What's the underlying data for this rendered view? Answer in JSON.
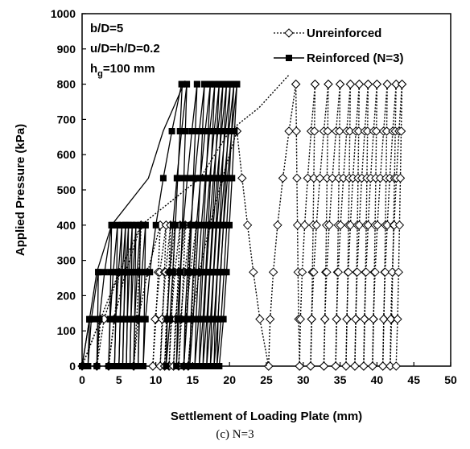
{
  "caption": "(c) N=3",
  "chart_data": {
    "type": "line",
    "xlabel": "Settlement of Loading Plate (mm)",
    "ylabel": "Applied Pressure (kPa)",
    "xlim": [
      0,
      50
    ],
    "ylim": [
      0,
      1000
    ],
    "xticks": [
      0,
      5,
      10,
      15,
      20,
      25,
      30,
      35,
      40,
      45,
      50
    ],
    "yticks": [
      0,
      100,
      200,
      300,
      400,
      500,
      600,
      700,
      800,
      900,
      1000
    ],
    "grid": false,
    "legend_position": "top-right",
    "annotations": [
      "b/D=5",
      "u/D=h/D=0.2",
      "h",
      "g",
      "=100 mm"
    ],
    "series": [
      {
        "name": "Unreinforced",
        "color": "#000000",
        "line_style": "dotted",
        "marker": "open-diamond",
        "envelope": [
          [
            0,
            0
          ],
          [
            2.5,
            133
          ],
          [
            5,
            267
          ],
          [
            8,
            400
          ],
          [
            16,
            533
          ],
          [
            20,
            667
          ],
          [
            24,
            733
          ],
          [
            28,
            825
          ]
        ],
        "loops": [
          {
            "start": 0,
            "x0": 0,
            "peak": 133,
            "xp": 2.5,
            "reload": 2.0
          },
          {
            "start": 2.0,
            "x0": 2.0,
            "peak": 267,
            "xp": 5.0,
            "reload": 3.6
          },
          {
            "start": 3.6,
            "x0": 3.6,
            "peak": 400,
            "xp": 8.0,
            "reload": 7.0
          },
          {
            "start": 7.0,
            "x0": 7.0,
            "peak": 400,
            "xp": 10.6,
            "reload": 9.6
          },
          {
            "start": 9.6,
            "x0": 9.6,
            "peak": 400,
            "xp": 11.4,
            "reload": 10.6
          },
          {
            "start": 10.6,
            "x0": 10.6,
            "peak": 400,
            "xp": 12.0,
            "reload": 11.2
          },
          {
            "start": 11.2,
            "x0": 11.2,
            "peak": 400,
            "xp": 12.6,
            "reload": 11.8
          },
          {
            "start": 11.8,
            "x0": 11.8,
            "peak": 400,
            "xp": 13.3,
            "reload": 12.4
          },
          {
            "start": 12.4,
            "x0": 12.4,
            "peak": 400,
            "xp": 14.0,
            "reload": 13.1
          },
          {
            "start": 13.1,
            "x0": 13.1,
            "peak": 400,
            "xp": 14.7,
            "reload": 13.8
          },
          {
            "start": 13.8,
            "x0": 13.8,
            "peak": 400,
            "xp": 15.5,
            "reload": 14.4
          },
          {
            "start": 14.4,
            "x0": 14.4,
            "peak": 667,
            "xp": 21.0,
            "reload": 25.3
          },
          {
            "start": 25.3,
            "x0": 25.3,
            "peak": 800,
            "xp": 29.0,
            "reload": 29.5
          },
          {
            "start": 29.5,
            "x0": 29.5,
            "peak": 800,
            "xp": 31.6,
            "reload": 31.0
          },
          {
            "start": 31.0,
            "x0": 31.0,
            "peak": 800,
            "xp": 33.4,
            "reload": 32.8
          },
          {
            "start": 32.8,
            "x0": 32.8,
            "peak": 800,
            "xp": 35.0,
            "reload": 34.4
          },
          {
            "start": 34.4,
            "x0": 34.4,
            "peak": 800,
            "xp": 36.4,
            "reload": 35.8
          },
          {
            "start": 35.8,
            "x0": 35.8,
            "peak": 800,
            "xp": 37.6,
            "reload": 37.0
          },
          {
            "start": 37.0,
            "x0": 37.0,
            "peak": 800,
            "xp": 38.8,
            "reload": 38.2
          },
          {
            "start": 38.2,
            "x0": 38.2,
            "peak": 800,
            "xp": 40.0,
            "reload": 39.4
          },
          {
            "start": 39.4,
            "x0": 39.4,
            "peak": 800,
            "xp": 41.4,
            "reload": 40.8
          },
          {
            "start": 40.8,
            "x0": 40.8,
            "peak": 800,
            "xp": 42.6,
            "reload": 41.8
          },
          {
            "start": 41.8,
            "x0": 41.8,
            "peak": 800,
            "xp": 43.4,
            "reload": 42.6
          }
        ]
      },
      {
        "name": "Reinforced (N=3)",
        "color": "#000000",
        "line_style": "solid",
        "marker": "filled-square",
        "envelope": [
          [
            0,
            0
          ],
          [
            1,
            133
          ],
          [
            2,
            267
          ],
          [
            4,
            400
          ],
          [
            9,
            533
          ],
          [
            11,
            667
          ],
          [
            14,
            810
          ]
        ],
        "loops": [
          {
            "start": 0,
            "x0": 0,
            "peak": 133,
            "xp": 1.0,
            "reload": 0.8
          },
          {
            "start": 0.8,
            "x0": 0.8,
            "peak": 267,
            "xp": 2.2,
            "reload": 2.0
          },
          {
            "start": 2.0,
            "x0": 2.0,
            "peak": 400,
            "xp": 4.0,
            "reload": 3.6
          },
          {
            "start": 3.6,
            "x0": 3.6,
            "peak": 400,
            "xp": 4.8,
            "reload": 4.4
          },
          {
            "start": 4.4,
            "x0": 4.4,
            "peak": 400,
            "xp": 5.4,
            "reload": 5.0
          },
          {
            "start": 5.0,
            "x0": 5.0,
            "peak": 400,
            "xp": 5.9,
            "reload": 5.5
          },
          {
            "start": 5.5,
            "x0": 5.5,
            "peak": 400,
            "xp": 6.3,
            "reload": 6.0
          },
          {
            "start": 6.0,
            "x0": 6.0,
            "peak": 400,
            "xp": 6.8,
            "reload": 6.5
          },
          {
            "start": 6.5,
            "x0": 6.5,
            "peak": 400,
            "xp": 7.3,
            "reload": 7.0
          },
          {
            "start": 7.0,
            "x0": 7.0,
            "peak": 400,
            "xp": 7.9,
            "reload": 7.6
          },
          {
            "start": 7.6,
            "x0": 7.6,
            "peak": 400,
            "xp": 8.6,
            "reload": 8.3
          },
          {
            "start": 8.3,
            "x0": 8.3,
            "peak": 810,
            "xp": 13.6,
            "reload": 11.4
          },
          {
            "start": 11.4,
            "x0": 11.4,
            "peak": 800,
            "xp": 14.2,
            "reload": 12.8
          },
          {
            "start": 12.8,
            "x0": 12.8,
            "peak": 800,
            "xp": 15.6,
            "reload": 13.8
          },
          {
            "start": 13.8,
            "x0": 13.8,
            "peak": 800,
            "xp": 16.6,
            "reload": 14.6
          },
          {
            "start": 14.6,
            "x0": 14.6,
            "peak": 800,
            "xp": 17.4,
            "reload": 15.3
          },
          {
            "start": 15.3,
            "x0": 15.3,
            "peak": 800,
            "xp": 18.0,
            "reload": 15.9
          },
          {
            "start": 15.9,
            "x0": 15.9,
            "peak": 800,
            "xp": 18.6,
            "reload": 16.4
          },
          {
            "start": 16.4,
            "x0": 16.4,
            "peak": 800,
            "xp": 19.1,
            "reload": 16.9
          },
          {
            "start": 16.9,
            "x0": 16.9,
            "peak": 800,
            "xp": 19.6,
            "reload": 17.4
          },
          {
            "start": 17.4,
            "x0": 17.4,
            "peak": 800,
            "xp": 20.1,
            "reload": 17.9
          },
          {
            "start": 17.9,
            "x0": 17.9,
            "peak": 800,
            "xp": 20.6,
            "reload": 18.3
          },
          {
            "start": 18.3,
            "x0": 18.3,
            "peak": 800,
            "xp": 21.0,
            "reload": 18.6
          }
        ]
      }
    ]
  }
}
